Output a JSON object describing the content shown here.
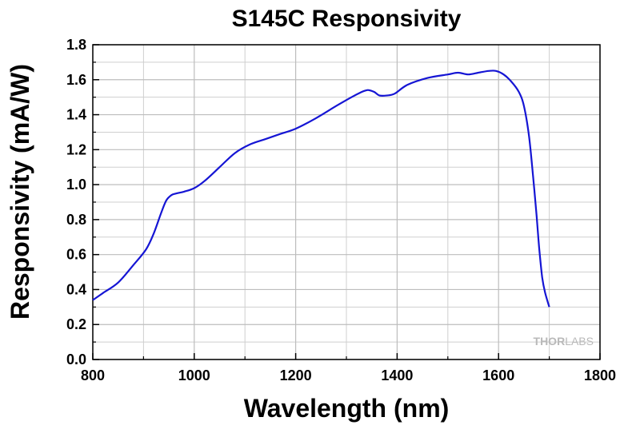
{
  "chart_data": {
    "type": "line",
    "title": "S145C Responsivity",
    "xlabel": "Wavelength (nm)",
    "ylabel": "Responsivity (mA/W)",
    "xlim": [
      800,
      1800
    ],
    "ylim": [
      0.0,
      1.8
    ],
    "x_ticks": [
      "800",
      "1000",
      "1200",
      "1400",
      "1600",
      "1800"
    ],
    "y_ticks": [
      "0.0",
      "0.2",
      "0.4",
      "0.6",
      "0.8",
      "1.0",
      "1.2",
      "1.4",
      "1.6",
      "1.8"
    ],
    "grid": true,
    "series": [
      {
        "color": "#1515d4",
        "x": [
          800,
          820,
          850,
          880,
          905,
          920,
          935,
          945,
          955,
          965,
          980,
          1000,
          1020,
          1050,
          1080,
          1110,
          1140,
          1170,
          1200,
          1240,
          1280,
          1310,
          1330,
          1340,
          1345,
          1355,
          1365,
          1380,
          1395,
          1420,
          1460,
          1500,
          1520,
          1540,
          1560,
          1580,
          1595,
          1610,
          1625,
          1640,
          1650,
          1660,
          1668,
          1675,
          1680,
          1686,
          1692,
          1700
        ],
        "y": [
          0.34,
          0.38,
          0.44,
          0.54,
          0.63,
          0.72,
          0.84,
          0.91,
          0.94,
          0.95,
          0.96,
          0.98,
          1.02,
          1.1,
          1.18,
          1.23,
          1.26,
          1.29,
          1.32,
          1.38,
          1.45,
          1.5,
          1.53,
          1.54,
          1.54,
          1.53,
          1.51,
          1.51,
          1.52,
          1.57,
          1.61,
          1.63,
          1.64,
          1.63,
          1.64,
          1.65,
          1.65,
          1.63,
          1.59,
          1.53,
          1.45,
          1.28,
          1.05,
          0.82,
          0.64,
          0.47,
          0.38,
          0.3
        ]
      }
    ]
  },
  "watermark": {
    "thor": "THOR",
    "labs": "LABS"
  }
}
